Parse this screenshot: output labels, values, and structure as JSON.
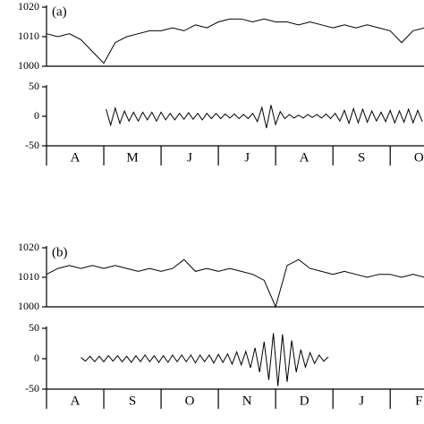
{
  "chart_data": [
    {
      "type": "line",
      "annotation": "(a)",
      "x": [
        0,
        0.2,
        0.4,
        0.6,
        0.8,
        1,
        1.2,
        1.4,
        1.6,
        1.8,
        2,
        2.2,
        2.4,
        2.6,
        2.8,
        3,
        3.2,
        3.4,
        3.6,
        3.8,
        4,
        4.2,
        4.4,
        4.6,
        4.8,
        5,
        5.2,
        5.4,
        5.6,
        5.8,
        6,
        6.2,
        6.4,
        6.6
      ],
      "series": [
        {
          "color": "#000000",
          "values": [
            1011,
            1010,
            1011,
            1009,
            1005,
            1001,
            1008,
            1010,
            1011,
            1012,
            1012,
            1013,
            1012,
            1014,
            1013,
            1015,
            1016,
            1016,
            1015,
            1016,
            1015,
            1015,
            1014,
            1015,
            1014,
            1013,
            1014,
            1013,
            1014,
            1013,
            1012,
            1008,
            1012,
            1013
          ]
        }
      ],
      "xlim": [
        0,
        6.59
      ],
      "ylim": [
        1000,
        1020
      ],
      "yticks": [
        1000,
        1010,
        1020
      ]
    },
    {
      "type": "line",
      "categories": [
        "A",
        "M",
        "J",
        "J",
        "A",
        "S",
        "O"
      ],
      "x": [
        1.04,
        1.12,
        1.2,
        1.28,
        1.36,
        1.44,
        1.52,
        1.6,
        1.68,
        1.76,
        1.84,
        1.92,
        2,
        2.08,
        2.16,
        2.24,
        2.32,
        2.4,
        2.48,
        2.56,
        2.64,
        2.72,
        2.8,
        2.88,
        2.96,
        3.04,
        3.12,
        3.2,
        3.28,
        3.36,
        3.44,
        3.52,
        3.6,
        3.68,
        3.76,
        3.84,
        3.92,
        4,
        4.08,
        4.16,
        4.24,
        4.32,
        4.4,
        4.48,
        4.56,
        4.64,
        4.72,
        4.8,
        4.88,
        4.96,
        5.04,
        5.12,
        5.2,
        5.28,
        5.36,
        5.44,
        5.52,
        5.6,
        5.68,
        5.76,
        5.84,
        5.92,
        6,
        6.08,
        6.16,
        6.24,
        6.32,
        6.4,
        6.48,
        6.56
      ],
      "series": [
        {
          "color": "#000000",
          "values": [
            12,
            -15,
            14,
            -12,
            9,
            -8,
            7,
            -8,
            7,
            -6,
            7,
            -8,
            7,
            -6,
            5,
            -6,
            5,
            -5,
            6,
            -5,
            5,
            -6,
            5,
            -4,
            5,
            -4,
            4,
            -3,
            4,
            -4,
            3,
            -4,
            5,
            -9,
            15,
            -20,
            19,
            -14,
            8,
            -4,
            3,
            -3,
            2,
            -3,
            3,
            -2,
            3,
            -3,
            4,
            -4,
            5,
            -8,
            10,
            -12,
            13,
            -11,
            12,
            -10,
            9,
            -8,
            7,
            -9,
            10,
            -11,
            9,
            -10,
            12,
            -11,
            10,
            -9
          ]
        }
      ],
      "xlim": [
        0,
        6.59
      ],
      "xticks": [
        0,
        1,
        2,
        3,
        4,
        5,
        6
      ],
      "ylim": [
        -50,
        50
      ],
      "yticks": [
        -50,
        0,
        50
      ]
    },
    {
      "type": "line",
      "annotation": "(b)",
      "x": [
        0,
        0.2,
        0.4,
        0.6,
        0.8,
        1,
        1.2,
        1.4,
        1.6,
        1.8,
        2,
        2.2,
        2.4,
        2.6,
        2.8,
        3,
        3.2,
        3.4,
        3.6,
        3.8,
        4,
        4.2,
        4.4,
        4.6,
        4.8,
        5,
        5.2,
        5.4,
        5.6,
        5.8,
        6,
        6.2,
        6.4,
        6.6
      ],
      "series": [
        {
          "color": "#000000",
          "values": [
            1011,
            1013,
            1014,
            1013,
            1014,
            1013,
            1014,
            1013,
            1012,
            1013,
            1012,
            1013,
            1016,
            1012,
            1013,
            1012,
            1013,
            1012,
            1011,
            1009,
            1000,
            1014,
            1016,
            1013,
            1012,
            1011,
            1012,
            1011,
            1010,
            1011,
            1011,
            1010,
            1011,
            1010
          ]
        }
      ],
      "xlim": [
        0,
        6.59
      ],
      "ylim": [
        1000,
        1020
      ],
      "yticks": [
        1000,
        1010,
        1020
      ]
    },
    {
      "type": "line",
      "categories": [
        "A",
        "S",
        "O",
        "N",
        "D",
        "J",
        "F"
      ],
      "x": [
        0.6,
        0.68,
        0.76,
        0.84,
        0.92,
        1,
        1.08,
        1.16,
        1.24,
        1.32,
        1.4,
        1.48,
        1.56,
        1.64,
        1.72,
        1.8,
        1.88,
        1.96,
        2.04,
        2.12,
        2.2,
        2.28,
        2.36,
        2.44,
        2.52,
        2.6,
        2.68,
        2.76,
        2.84,
        2.92,
        3,
        3.08,
        3.16,
        3.24,
        3.32,
        3.4,
        3.48,
        3.56,
        3.64,
        3.72,
        3.8,
        3.88,
        3.96,
        4.04,
        4.12,
        4.2,
        4.28,
        4.36,
        4.44,
        4.52,
        4.6,
        4.68,
        4.76,
        4.84,
        4.92
      ],
      "series": [
        {
          "color": "#000000",
          "values": [
            2,
            -4,
            4,
            -5,
            4,
            -5,
            5,
            -4,
            5,
            -5,
            4,
            -6,
            5,
            -5,
            6,
            -5,
            5,
            -6,
            5,
            -6,
            6,
            -5,
            6,
            -5,
            6,
            -7,
            6,
            -5,
            6,
            -7,
            7,
            -6,
            8,
            -9,
            11,
            -10,
            12,
            -15,
            18,
            -22,
            28,
            -35,
            42,
            -45,
            40,
            -38,
            30,
            -22,
            15,
            -14,
            10,
            -8,
            6,
            -4,
            3
          ]
        }
      ],
      "xlim": [
        0,
        6.59
      ],
      "xticks": [
        0,
        1,
        2,
        3,
        4,
        5,
        6
      ],
      "ylim": [
        -50,
        50
      ],
      "yticks": [
        -50,
        0,
        50
      ]
    }
  ]
}
